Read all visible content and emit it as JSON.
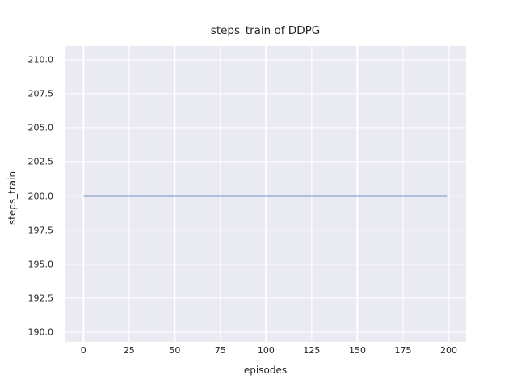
{
  "figure": {
    "background_color": "#ffffff",
    "text_color": "#262626"
  },
  "chart_data": {
    "type": "line",
    "title": "steps_train of DDPG",
    "xlabel": "episodes",
    "ylabel": "steps_train",
    "xlim": [
      -10.3,
      209.5
    ],
    "ylim": [
      189.3,
      211.0
    ],
    "xticks": [
      {
        "value": 0,
        "label": "0"
      },
      {
        "value": 25,
        "label": "25"
      },
      {
        "value": 50,
        "label": "50"
      },
      {
        "value": 75,
        "label": "75"
      },
      {
        "value": 100,
        "label": "100"
      },
      {
        "value": 125,
        "label": "125"
      },
      {
        "value": 150,
        "label": "150"
      },
      {
        "value": 175,
        "label": "175"
      },
      {
        "value": 200,
        "label": "200"
      }
    ],
    "yticks": [
      {
        "value": 190.0,
        "label": "190.0"
      },
      {
        "value": 192.5,
        "label": "192.5"
      },
      {
        "value": 195.0,
        "label": "195.0"
      },
      {
        "value": 197.5,
        "label": "197.5"
      },
      {
        "value": 200.0,
        "label": "200.0"
      },
      {
        "value": 202.5,
        "label": "202.5"
      },
      {
        "value": 205.0,
        "label": "205.0"
      },
      {
        "value": 207.5,
        "label": "207.5"
      },
      {
        "value": 210.0,
        "label": "210.0"
      }
    ],
    "grid": true,
    "legend": false,
    "plot_background_color": "#EAEAF2",
    "grid_color": "#FFFFFF",
    "series": [
      {
        "name": "steps_train",
        "color": "#4C72B0",
        "line_width": 1.8,
        "x": [
          0,
          199
        ],
        "y": [
          200,
          200
        ]
      }
    ]
  }
}
